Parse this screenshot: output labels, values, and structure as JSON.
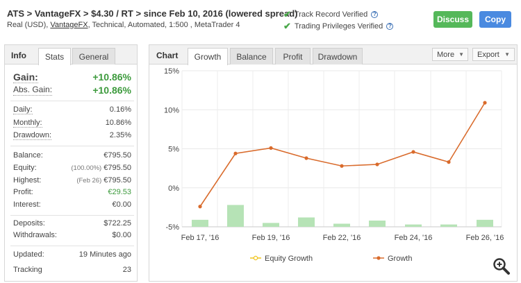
{
  "header": {
    "title": "ATS > VantageFX > $4.30 / RT > since Feb 10, 2016 (lowered spread)",
    "sub_prefix": "Real (USD), ",
    "sub_broker": "VantageFX",
    "sub_suffix": ", Technical, Automated, 1:500 , MetaTrader 4",
    "verified_track": "Track Record Verified",
    "verified_privileges": "Trading Privileges Verified",
    "discuss_label": "Discuss",
    "copy_label": "Copy"
  },
  "left": {
    "tabs": {
      "info": "Info",
      "stats": "Stats",
      "general": "General"
    },
    "gain": {
      "label": "Gain:",
      "value": "+10.86%"
    },
    "abs_gain": {
      "label": "Abs. Gain:",
      "value": "+10.86%"
    },
    "daily": {
      "label": "Daily:",
      "value": "0.16%"
    },
    "monthly": {
      "label": "Monthly:",
      "value": "10.86%"
    },
    "drawdown": {
      "label": "Drawdown:",
      "value": "2.35%"
    },
    "balance": {
      "label": "Balance:",
      "value": "€795.50"
    },
    "equity": {
      "label": "Equity:",
      "paren": "(100.00%)",
      "value": "€795.50"
    },
    "highest": {
      "label": "Highest:",
      "paren": "(Feb 26)",
      "value": "€795.50"
    },
    "profit": {
      "label": "Profit:",
      "value": "€29.53"
    },
    "interest": {
      "label": "Interest:",
      "value": "€0.00"
    },
    "deposits": {
      "label": "Deposits:",
      "value": "$722.25"
    },
    "withdrawals": {
      "label": "Withdrawals:",
      "value": "$0.00"
    },
    "updated": {
      "label": "Updated:",
      "value": "19 Minutes ago"
    },
    "tracking": {
      "label": "Tracking",
      "value": "23"
    }
  },
  "right": {
    "tabs": {
      "chart": "Chart",
      "growth": "Growth",
      "balance": "Balance",
      "profit": "Profit",
      "drawdown": "Drawdown"
    },
    "more_label": "More",
    "export_label": "Export"
  },
  "colors": {
    "line": "#d96b2c",
    "bar": "#b6e3b6",
    "equity_legend": "#f0c419",
    "green": "#3c9a3c",
    "discuss": "#55b85a",
    "copy": "#4a8ae0"
  },
  "icons": {
    "check": "check-icon",
    "help": "help-icon",
    "zoom": "zoom-icon"
  },
  "chart_data": {
    "type": "line",
    "title": "",
    "x_ticks": [
      "Feb 17, '16",
      "Feb 19, '16",
      "Feb 22, '16",
      "Feb 24, '16",
      "Feb 26, '16"
    ],
    "y_ticks": [
      "15%",
      "10%",
      "5%",
      "0%",
      "-5%"
    ],
    "ylim": [
      -5,
      15
    ],
    "grid": true,
    "legend_position": "bottom",
    "series": [
      {
        "name": "Growth",
        "kind": "line",
        "values": [
          -2.4,
          4.4,
          5.1,
          3.8,
          2.8,
          3.0,
          4.6,
          3.3,
          10.9
        ]
      },
      {
        "name": "Equity Growth",
        "kind": "bar",
        "values": [
          -4.1,
          -2.2,
          -4.5,
          -3.8,
          -4.6,
          -4.2,
          -4.7,
          -4.7,
          -4.1
        ]
      }
    ]
  }
}
